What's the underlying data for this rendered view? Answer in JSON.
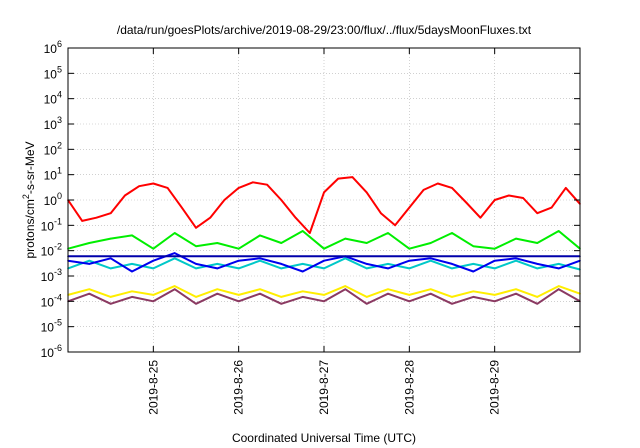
{
  "chart_data": {
    "type": "line",
    "title": "/data/run/goesPlots/archive/2019-08-29/23:00/flux/../flux/5daysMoonFluxes.txt",
    "xlabel": "Coordinated Universal Time (UTC)",
    "ylabel": {
      "main": "protons/cm",
      "sup": "2",
      "rest": "-s-sr-MeV"
    },
    "x_ticks": [
      "2019-8-25",
      "2019-8-26",
      "2019-8-27",
      "2019-8-28",
      "2019-8-29"
    ],
    "xlim": [
      "2019-08-24T00:00",
      "2019-08-30T00:00"
    ],
    "y_scale": "log",
    "ylim": [
      1e-06,
      1000000.0
    ],
    "y_ticks": [
      {
        "base": "10",
        "exp": "6"
      },
      {
        "base": "10",
        "exp": "5"
      },
      {
        "base": "10",
        "exp": "4"
      },
      {
        "base": "10",
        "exp": "3"
      },
      {
        "base": "10",
        "exp": "2"
      },
      {
        "base": "10",
        "exp": "1"
      },
      {
        "base": "10",
        "exp": "0"
      },
      {
        "base": "10",
        "exp": "-1"
      },
      {
        "base": "10",
        "exp": "-2"
      },
      {
        "base": "10",
        "exp": "-3"
      },
      {
        "base": "10",
        "exp": "-4"
      },
      {
        "base": "10",
        "exp": "-5"
      },
      {
        "base": "10",
        "exp": "-6"
      }
    ],
    "grid": true,
    "series": [
      {
        "color": "#ff0000",
        "x": [
          "2019-08-24T00:00",
          "2019-08-24T04:00",
          "2019-08-24T08:00",
          "2019-08-24T12:00",
          "2019-08-24T16:00",
          "2019-08-24T20:00",
          "2019-08-25T00:00",
          "2019-08-25T04:00",
          "2019-08-25T08:00",
          "2019-08-25T12:00",
          "2019-08-25T16:00",
          "2019-08-25T20:00",
          "2019-08-26T00:00",
          "2019-08-26T04:00",
          "2019-08-26T08:00",
          "2019-08-26T12:00",
          "2019-08-26T16:00",
          "2019-08-26T20:00",
          "2019-08-27T00:00",
          "2019-08-27T04:00",
          "2019-08-27T08:00",
          "2019-08-27T12:00",
          "2019-08-27T16:00",
          "2019-08-27T20:00",
          "2019-08-28T00:00",
          "2019-08-28T04:00",
          "2019-08-28T08:00",
          "2019-08-28T12:00",
          "2019-08-28T16:00",
          "2019-08-28T20:00",
          "2019-08-29T00:00",
          "2019-08-29T04:00",
          "2019-08-29T08:00",
          "2019-08-29T12:00",
          "2019-08-29T16:00",
          "2019-08-29T20:00",
          "2019-08-30T00:00"
        ],
        "y": [
          1.0,
          0.15,
          0.2,
          0.3,
          1.5,
          3.5,
          4.5,
          3.0,
          0.5,
          0.08,
          0.2,
          1.0,
          3.0,
          5.0,
          4.0,
          1.0,
          0.2,
          0.05,
          2.0,
          7.0,
          8.0,
          2.0,
          0.3,
          0.1,
          0.5,
          2.5,
          4.5,
          3.0,
          0.8,
          0.2,
          1.0,
          1.5,
          1.2,
          0.3,
          0.5,
          3.0,
          0.7
        ]
      },
      {
        "color": "#00ee00",
        "x": [
          "2019-08-24T00:00",
          "2019-08-24T06:00",
          "2019-08-24T12:00",
          "2019-08-24T18:00",
          "2019-08-25T00:00",
          "2019-08-25T06:00",
          "2019-08-25T12:00",
          "2019-08-25T18:00",
          "2019-08-26T00:00",
          "2019-08-26T06:00",
          "2019-08-26T12:00",
          "2019-08-26T18:00",
          "2019-08-27T00:00",
          "2019-08-27T06:00",
          "2019-08-27T12:00",
          "2019-08-27T18:00",
          "2019-08-28T00:00",
          "2019-08-28T06:00",
          "2019-08-28T12:00",
          "2019-08-28T18:00",
          "2019-08-29T00:00",
          "2019-08-29T06:00",
          "2019-08-29T12:00",
          "2019-08-29T18:00",
          "2019-08-30T00:00"
        ],
        "y": [
          0.012,
          0.02,
          0.03,
          0.04,
          0.012,
          0.05,
          0.015,
          0.02,
          0.012,
          0.04,
          0.02,
          0.06,
          0.012,
          0.03,
          0.02,
          0.05,
          0.012,
          0.02,
          0.05,
          0.015,
          0.012,
          0.03,
          0.02,
          0.06,
          0.012
        ]
      },
      {
        "color": "#00c8c8",
        "x": [
          "2019-08-24T00:00",
          "2019-08-24T06:00",
          "2019-08-24T12:00",
          "2019-08-24T18:00",
          "2019-08-25T00:00",
          "2019-08-25T06:00",
          "2019-08-25T12:00",
          "2019-08-25T18:00",
          "2019-08-26T00:00",
          "2019-08-26T06:00",
          "2019-08-26T12:00",
          "2019-08-26T18:00",
          "2019-08-27T00:00",
          "2019-08-27T06:00",
          "2019-08-27T12:00",
          "2019-08-27T18:00",
          "2019-08-28T00:00",
          "2019-08-28T06:00",
          "2019-08-28T12:00",
          "2019-08-28T18:00",
          "2019-08-29T00:00",
          "2019-08-29T06:00",
          "2019-08-29T12:00",
          "2019-08-29T18:00",
          "2019-08-30T00:00"
        ],
        "y": [
          0.002,
          0.004,
          0.002,
          0.003,
          0.002,
          0.005,
          0.002,
          0.003,
          0.002,
          0.004,
          0.002,
          0.003,
          0.002,
          0.005,
          0.002,
          0.003,
          0.002,
          0.004,
          0.002,
          0.003,
          0.002,
          0.004,
          0.002,
          0.003,
          0.0018
        ]
      },
      {
        "color": "#0000ee",
        "x": [
          "2019-08-24T00:00",
          "2019-08-24T06:00",
          "2019-08-24T12:00",
          "2019-08-24T18:00",
          "2019-08-25T00:00",
          "2019-08-25T06:00",
          "2019-08-25T12:00",
          "2019-08-25T18:00",
          "2019-08-26T00:00",
          "2019-08-26T06:00",
          "2019-08-26T12:00",
          "2019-08-26T18:00",
          "2019-08-27T00:00",
          "2019-08-27T06:00",
          "2019-08-27T12:00",
          "2019-08-27T18:00",
          "2019-08-28T00:00",
          "2019-08-28T06:00",
          "2019-08-28T12:00",
          "2019-08-28T18:00",
          "2019-08-29T00:00",
          "2019-08-29T06:00",
          "2019-08-29T12:00",
          "2019-08-29T18:00",
          "2019-08-30T00:00"
        ],
        "y": [
          0.004,
          0.003,
          0.005,
          0.0015,
          0.004,
          0.008,
          0.003,
          0.002,
          0.004,
          0.005,
          0.003,
          0.0015,
          0.004,
          0.006,
          0.003,
          0.002,
          0.004,
          0.005,
          0.003,
          0.0015,
          0.004,
          0.005,
          0.003,
          0.002,
          0.004
        ]
      },
      {
        "color": "#0000aa",
        "x": [
          "2019-08-24T00:00",
          "2019-08-25T00:00",
          "2019-08-26T00:00",
          "2019-08-27T00:00",
          "2019-08-28T00:00",
          "2019-08-29T00:00",
          "2019-08-30T00:00"
        ],
        "y": [
          0.006,
          0.006,
          0.006,
          0.006,
          0.006,
          0.006,
          0.006
        ]
      },
      {
        "color": "#ffee00",
        "x": [
          "2019-08-24T00:00",
          "2019-08-24T06:00",
          "2019-08-24T12:00",
          "2019-08-24T18:00",
          "2019-08-25T00:00",
          "2019-08-25T06:00",
          "2019-08-25T12:00",
          "2019-08-25T18:00",
          "2019-08-26T00:00",
          "2019-08-26T06:00",
          "2019-08-26T12:00",
          "2019-08-26T18:00",
          "2019-08-27T00:00",
          "2019-08-27T06:00",
          "2019-08-27T12:00",
          "2019-08-27T18:00",
          "2019-08-28T00:00",
          "2019-08-28T06:00",
          "2019-08-28T12:00",
          "2019-08-28T18:00",
          "2019-08-29T00:00",
          "2019-08-29T06:00",
          "2019-08-29T12:00",
          "2019-08-29T18:00",
          "2019-08-30T00:00"
        ],
        "y": [
          0.00018,
          0.0003,
          0.00015,
          0.00025,
          0.00018,
          0.0004,
          0.00015,
          0.0003,
          0.00018,
          0.0003,
          0.00015,
          0.00025,
          0.00018,
          0.0004,
          0.00015,
          0.0003,
          0.00018,
          0.0003,
          0.00015,
          0.00025,
          0.00018,
          0.0003,
          0.00015,
          0.0004,
          0.0002
        ]
      },
      {
        "color": "#8b3a62",
        "x": [
          "2019-08-24T00:00",
          "2019-08-24T06:00",
          "2019-08-24T12:00",
          "2019-08-24T18:00",
          "2019-08-25T00:00",
          "2019-08-25T06:00",
          "2019-08-25T12:00",
          "2019-08-25T18:00",
          "2019-08-26T00:00",
          "2019-08-26T06:00",
          "2019-08-26T12:00",
          "2019-08-26T18:00",
          "2019-08-27T00:00",
          "2019-08-27T06:00",
          "2019-08-27T12:00",
          "2019-08-27T18:00",
          "2019-08-28T00:00",
          "2019-08-28T06:00",
          "2019-08-28T12:00",
          "2019-08-28T18:00",
          "2019-08-29T00:00",
          "2019-08-29T06:00",
          "2019-08-29T12:00",
          "2019-08-29T18:00",
          "2019-08-30T00:00"
        ],
        "y": [
          0.0001,
          0.0002,
          8e-05,
          0.00015,
          0.0001,
          0.0003,
          8e-05,
          0.0002,
          0.0001,
          0.0002,
          8e-05,
          0.00015,
          0.0001,
          0.0003,
          8e-05,
          0.0002,
          0.0001,
          0.0002,
          8e-05,
          0.00015,
          0.0001,
          0.0002,
          8e-05,
          0.0003,
          0.0001
        ]
      }
    ]
  }
}
